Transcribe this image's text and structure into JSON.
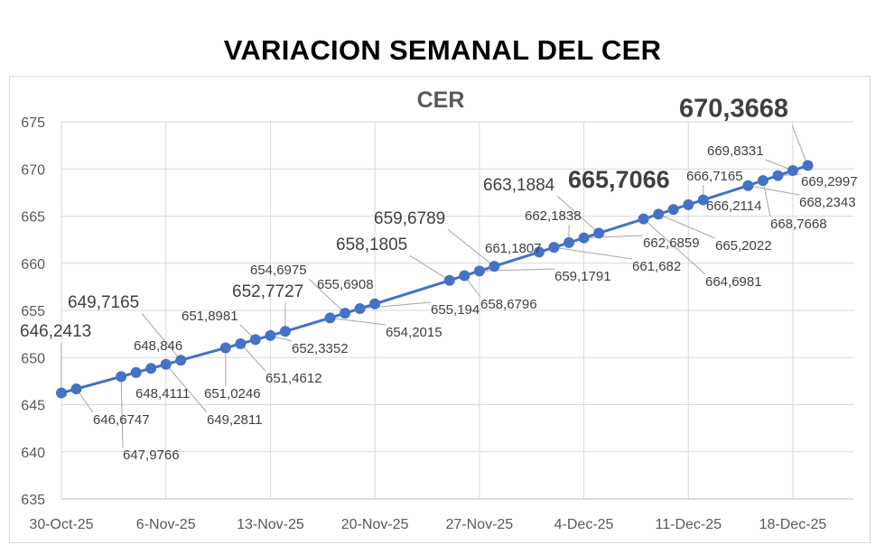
{
  "title": "VARIACION SEMANAL DEL CER",
  "chart_data": {
    "type": "line",
    "title": "CER",
    "xlabel": "",
    "ylabel": "",
    "ylim": [
      635,
      675
    ],
    "y_ticks": [
      "635",
      "640",
      "645",
      "650",
      "655",
      "660",
      "665",
      "670",
      "675"
    ],
    "x_ticks": [
      "30-Oct-25",
      "6-Nov-25",
      "13-Nov-25",
      "20-Nov-25",
      "27-Nov-25",
      "4-Dec-25",
      "11-Dec-25",
      "18-Dec-25"
    ],
    "grid": true,
    "legend": "none",
    "series_color": "#4472C4",
    "series": [
      {
        "points": [
          {
            "x": "30-Oct-25",
            "y": 646.2413
          },
          {
            "x": "31-Oct-25",
            "y": 646.6747
          },
          {
            "x": "3-Nov-25",
            "y": 647.9766
          },
          {
            "x": "4-Nov-25",
            "y": 648.4111
          },
          {
            "x": "5-Nov-25",
            "y": 648.846
          },
          {
            "x": "6-Nov-25",
            "y": 649.2811
          },
          {
            "x": "7-Nov-25",
            "y": 649.7165
          },
          {
            "x": "10-Nov-25",
            "y": 651.0246
          },
          {
            "x": "11-Nov-25",
            "y": 651.4612
          },
          {
            "x": "12-Nov-25",
            "y": 651.8981
          },
          {
            "x": "13-Nov-25",
            "y": 652.3352
          },
          {
            "x": "14-Nov-25",
            "y": 652.7727
          },
          {
            "x": "17-Nov-25",
            "y": 654.2015
          },
          {
            "x": "18-Nov-25",
            "y": 654.6975
          },
          {
            "x": "19-Nov-25",
            "y": 655.194
          },
          {
            "x": "20-Nov-25",
            "y": 655.6908
          },
          {
            "x": "25-Nov-25",
            "y": 658.1805
          },
          {
            "x": "26-Nov-25",
            "y": 658.6796
          },
          {
            "x": "27-Nov-25",
            "y": 659.1791
          },
          {
            "x": "28-Nov-25",
            "y": 659.6789
          },
          {
            "x": "1-Dec-25",
            "y": 661.1807
          },
          {
            "x": "2-Dec-25",
            "y": 661.682
          },
          {
            "x": "3-Dec-25",
            "y": 662.1838
          },
          {
            "x": "4-Dec-25",
            "y": 662.6859
          },
          {
            "x": "5-Dec-25",
            "y": 663.1884
          },
          {
            "x": "8-Dec-25",
            "y": 664.6981
          },
          {
            "x": "9-Dec-25",
            "y": 665.2022
          },
          {
            "x": "10-Dec-25",
            "y": 665.7066
          },
          {
            "x": "11-Dec-25",
            "y": 666.2114
          },
          {
            "x": "12-Dec-25",
            "y": 666.7165
          },
          {
            "x": "15-Dec-25",
            "y": 668.2343
          },
          {
            "x": "16-Dec-25",
            "y": 668.7668
          },
          {
            "x": "17-Dec-25",
            "y": 669.2997
          },
          {
            "x": "18-Dec-25",
            "y": 669.8331
          },
          {
            "x": "19-Dec-25",
            "y": 670.3668
          }
        ],
        "labels": [
          "646,2413",
          "646,6747",
          "647,9766",
          "648,4111",
          "648,846",
          "649,2811",
          "649,7165",
          "651,0246",
          "651,4612",
          "651,8981",
          "652,3352",
          "652,7727",
          "654,2015",
          "654,6975",
          "655,194",
          "655,6908",
          "658,1805",
          "658,6796",
          "659,1791",
          "659,6789",
          "661,1807",
          "661,682",
          "662,1838",
          "662,6859",
          "663,1884",
          "664,6981",
          "665,2022",
          "665,7066",
          "666,2114",
          "666,7165",
          "668,2343",
          "668,7668",
          "669,2997",
          "669,8331",
          "670,3668"
        ]
      }
    ]
  }
}
